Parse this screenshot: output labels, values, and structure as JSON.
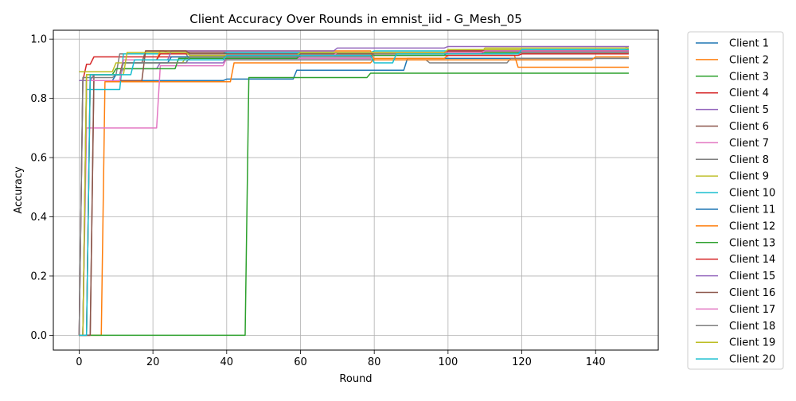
{
  "chart_data": {
    "type": "line",
    "title": "Client Accuracy Over Rounds in emnist_iid - G_Mesh_05",
    "xlabel": "Round",
    "ylabel": "Accuracy",
    "xlim": [
      -7,
      157
    ],
    "ylim": [
      -0.05,
      1.03
    ],
    "xticks": [
      0,
      20,
      40,
      60,
      80,
      100,
      120,
      140
    ],
    "yticks": [
      0.0,
      0.2,
      0.4,
      0.6,
      0.8,
      1.0
    ],
    "ytick_labels": [
      "0.0",
      "0.2",
      "0.4",
      "0.6",
      "0.8",
      "1.0"
    ],
    "grid": true,
    "legend_position": "outside-right",
    "series": [
      {
        "name": "Client 1",
        "color": "#1f77b4",
        "points": [
          [
            0,
            0.0
          ],
          [
            1,
            0.86
          ],
          [
            40,
            0.865
          ],
          [
            58,
            0.865
          ],
          [
            59,
            0.895
          ],
          [
            88,
            0.895
          ],
          [
            89,
            0.935
          ],
          [
            149,
            0.935
          ]
        ]
      },
      {
        "name": "Client 2",
        "color": "#ff7f0e",
        "points": [
          [
            0,
            0.0
          ],
          [
            6,
            0.0
          ],
          [
            7,
            0.856
          ],
          [
            41,
            0.856
          ],
          [
            42,
            0.92
          ],
          [
            80,
            0.935
          ],
          [
            100,
            0.945
          ],
          [
            118,
            0.945
          ],
          [
            119,
            0.905
          ],
          [
            149,
            0.905
          ]
        ]
      },
      {
        "name": "Client 3",
        "color": "#2ca02c",
        "points": [
          [
            0,
            0.0
          ],
          [
            45,
            0.0
          ],
          [
            46,
            0.87
          ],
          [
            78,
            0.87
          ],
          [
            79,
            0.885
          ],
          [
            149,
            0.885
          ]
        ]
      },
      {
        "name": "Client 4",
        "color": "#d62728",
        "points": [
          [
            0,
            0.0
          ],
          [
            1,
            0.86
          ],
          [
            2,
            0.915
          ],
          [
            4,
            0.94
          ],
          [
            20,
            0.94
          ],
          [
            40,
            0.945
          ],
          [
            80,
            0.945
          ],
          [
            120,
            0.95
          ],
          [
            149,
            0.95
          ]
        ]
      },
      {
        "name": "Client 5",
        "color": "#9467bd",
        "points": [
          [
            0,
            0.86
          ],
          [
            3,
            0.86
          ],
          [
            4,
            0.88
          ],
          [
            12,
            0.9
          ],
          [
            22,
            0.92
          ],
          [
            40,
            0.935
          ],
          [
            80,
            0.95
          ],
          [
            100,
            0.955
          ],
          [
            149,
            0.955
          ]
        ]
      },
      {
        "name": "Client 6",
        "color": "#8c564b",
        "points": [
          [
            0,
            0.0
          ],
          [
            3,
            0.0
          ],
          [
            4,
            0.88
          ],
          [
            11,
            0.88
          ],
          [
            12,
            0.92
          ],
          [
            18,
            0.96
          ],
          [
            24,
            0.955
          ],
          [
            60,
            0.955
          ],
          [
            100,
            0.96
          ],
          [
            149,
            0.96
          ]
        ]
      },
      {
        "name": "Client 7",
        "color": "#e377c2",
        "points": [
          [
            0,
            0.0
          ],
          [
            2,
            0.7
          ],
          [
            21,
            0.7
          ],
          [
            22,
            0.91
          ],
          [
            40,
            0.935
          ],
          [
            80,
            0.95
          ],
          [
            120,
            0.96
          ],
          [
            149,
            0.96
          ]
        ]
      },
      {
        "name": "Client 8",
        "color": "#7f7f7f",
        "points": [
          [
            0,
            0.0
          ],
          [
            1,
            0.87
          ],
          [
            10,
            0.88
          ],
          [
            11,
            0.95
          ],
          [
            30,
            0.93
          ],
          [
            94,
            0.93
          ],
          [
            95,
            0.92
          ],
          [
            116,
            0.92
          ],
          [
            117,
            0.935
          ],
          [
            149,
            0.935
          ]
        ]
      },
      {
        "name": "Client 9",
        "color": "#bcbd22",
        "points": [
          [
            0,
            0.89
          ],
          [
            9,
            0.89
          ],
          [
            10,
            0.92
          ],
          [
            28,
            0.92
          ],
          [
            29,
            0.94
          ],
          [
            60,
            0.955
          ],
          [
            110,
            0.97
          ],
          [
            149,
            0.975
          ]
        ]
      },
      {
        "name": "Client 10",
        "color": "#17becf",
        "points": [
          [
            0,
            0.0
          ],
          [
            1,
            0.0
          ],
          [
            2,
            0.83
          ],
          [
            11,
            0.83
          ],
          [
            12,
            0.95
          ],
          [
            40,
            0.955
          ],
          [
            80,
            0.96
          ],
          [
            149,
            0.965
          ]
        ]
      },
      {
        "name": "Client 11",
        "color": "#1f77b4",
        "points": [
          [
            0,
            0.0
          ],
          [
            2,
            0.86
          ],
          [
            10,
            0.88
          ],
          [
            12,
            0.92
          ],
          [
            25,
            0.94
          ],
          [
            60,
            0.95
          ],
          [
            100,
            0.96
          ],
          [
            149,
            0.96
          ]
        ]
      },
      {
        "name": "Client 12",
        "color": "#ff7f0e",
        "points": [
          [
            0,
            0.0
          ],
          [
            3,
            0.86
          ],
          [
            12,
            0.93
          ],
          [
            22,
            0.96
          ],
          [
            50,
            0.96
          ],
          [
            80,
            0.93
          ],
          [
            100,
            0.93
          ],
          [
            140,
            0.94
          ],
          [
            149,
            0.94
          ]
        ]
      },
      {
        "name": "Client 13",
        "color": "#2ca02c",
        "points": [
          [
            0,
            0.0
          ],
          [
            2,
            0.88
          ],
          [
            10,
            0.9
          ],
          [
            26,
            0.9
          ],
          [
            27,
            0.935
          ],
          [
            60,
            0.945
          ],
          [
            100,
            0.955
          ],
          [
            149,
            0.955
          ]
        ]
      },
      {
        "name": "Client 14",
        "color": "#d62728",
        "points": [
          [
            0,
            0.0
          ],
          [
            3,
            0.88
          ],
          [
            12,
            0.93
          ],
          [
            22,
            0.95
          ],
          [
            60,
            0.95
          ],
          [
            100,
            0.96
          ],
          [
            149,
            0.96
          ]
        ]
      },
      {
        "name": "Client 15",
        "color": "#9467bd",
        "points": [
          [
            0,
            0.0
          ],
          [
            2,
            0.86
          ],
          [
            12,
            0.93
          ],
          [
            25,
            0.96
          ],
          [
            70,
            0.97
          ],
          [
            100,
            0.975
          ],
          [
            149,
            0.975
          ]
        ]
      },
      {
        "name": "Client 16",
        "color": "#8c564b",
        "points": [
          [
            0,
            0.0
          ],
          [
            4,
            0.86
          ],
          [
            18,
            0.96
          ],
          [
            30,
            0.95
          ],
          [
            60,
            0.95
          ],
          [
            110,
            0.96
          ],
          [
            149,
            0.955
          ]
        ]
      },
      {
        "name": "Client 17",
        "color": "#e377c2",
        "points": [
          [
            0,
            0.0
          ],
          [
            2,
            0.86
          ],
          [
            12,
            0.93
          ],
          [
            40,
            0.945
          ],
          [
            70,
            0.955
          ],
          [
            110,
            0.96
          ],
          [
            149,
            0.96
          ]
        ]
      },
      {
        "name": "Client 18",
        "color": "#7f7f7f",
        "points": [
          [
            0,
            0.0
          ],
          [
            3,
            0.88
          ],
          [
            12,
            0.92
          ],
          [
            30,
            0.94
          ],
          [
            80,
            0.95
          ],
          [
            120,
            0.955
          ],
          [
            149,
            0.955
          ]
        ]
      },
      {
        "name": "Client 19",
        "color": "#bcbd22",
        "points": [
          [
            0,
            0.0
          ],
          [
            2,
            0.88
          ],
          [
            13,
            0.955
          ],
          [
            30,
            0.945
          ],
          [
            60,
            0.955
          ],
          [
            100,
            0.965
          ],
          [
            149,
            0.97
          ]
        ]
      },
      {
        "name": "Client 20",
        "color": "#17becf",
        "points": [
          [
            0,
            0.0
          ],
          [
            3,
            0.88
          ],
          [
            15,
            0.93
          ],
          [
            40,
            0.945
          ],
          [
            79,
            0.945
          ],
          [
            80,
            0.92
          ],
          [
            85,
            0.92
          ],
          [
            86,
            0.95
          ],
          [
            120,
            0.965
          ],
          [
            149,
            0.965
          ]
        ]
      }
    ]
  }
}
